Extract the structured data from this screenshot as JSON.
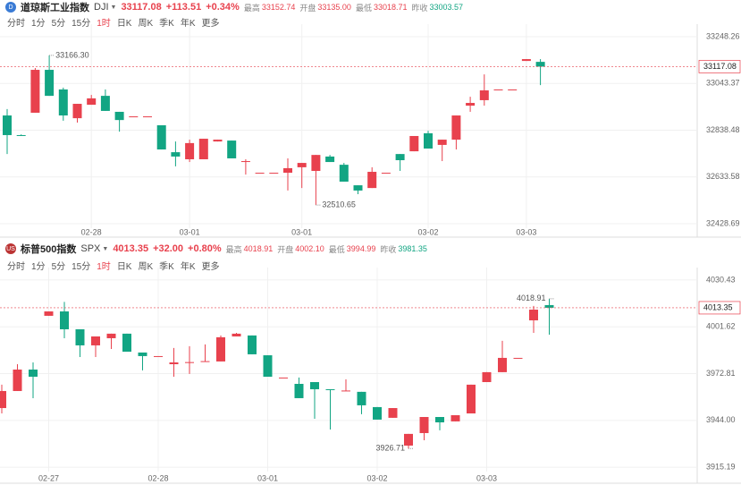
{
  "tabs": [
    "分时",
    "1分",
    "5分",
    "15分",
    "1时",
    "日K",
    "周K",
    "季K",
    "年K",
    "更多"
  ],
  "active_tab": "1时",
  "chart_data": [
    {
      "type": "candlestick",
      "title": "道琼斯工业指数",
      "symbol": "DJI",
      "icon": "D",
      "header": {
        "change": "+113.51",
        "change_pct": "+0.34%",
        "high_label": "最高",
        "high": "33152.74",
        "open_label": "开盘",
        "open": "33135.00",
        "low_label": "最低",
        "low": "33018.71",
        "prev_label": "昨收",
        "prev": "33003.57"
      },
      "categories": [
        null,
        null,
        null,
        null,
        null,
        null,
        "02-28",
        null,
        null,
        null,
        null,
        null,
        null,
        "03-01",
        null,
        null,
        null,
        null,
        null,
        null,
        null,
        "03-01",
        null,
        null,
        null,
        null,
        null,
        null,
        null,
        null,
        "03-02",
        null,
        null,
        null,
        null,
        null,
        null,
        "03-03",
        null
      ],
      "open": [
        32903,
        32817,
        32915,
        33103,
        33017,
        32891,
        32950,
        32989,
        32919,
        32899,
        32899,
        32860,
        32742,
        32711,
        32711,
        32789,
        32793,
        32703,
        32652,
        32652,
        32652,
        32676,
        32660,
        32723,
        32687,
        32597,
        32585,
        32652,
        32734,
        32746,
        32825,
        32774,
        32797,
        32946,
        32970,
        33017,
        33017,
        33142,
        33138
      ],
      "high": [
        32931,
        32820,
        33111,
        33166.3,
        33025,
        32954,
        32993,
        33017,
        32919,
        32899,
        32899,
        32860,
        32789,
        32797,
        32801,
        32797,
        32793,
        32711,
        32652,
        32652,
        32715,
        32695,
        32730,
        32730,
        32695,
        32597,
        32676,
        32652,
        32734,
        32813,
        32836,
        32797,
        32903,
        32985,
        33083,
        33017,
        33017,
        33150,
        33150
      ],
      "low": [
        32734,
        32814,
        32915,
        32989,
        32880,
        32872,
        32950,
        32923,
        32832,
        32899,
        32899,
        32754,
        32680,
        32699,
        32711,
        32789,
        32715,
        32644,
        32652,
        32652,
        32574,
        32585,
        32510.65,
        32699,
        32613,
        32558,
        32585,
        32652,
        32660,
        32746,
        32758,
        32703,
        32754,
        32919,
        32946,
        33017,
        33017,
        33142,
        33036
      ],
      "close": [
        32817,
        32816,
        33103,
        32989,
        32903,
        32954,
        32978,
        32923,
        32883,
        32899,
        32899,
        32754,
        32723,
        32782,
        32801,
        32797,
        32715,
        32703,
        32652,
        32652,
        32672,
        32695,
        32730,
        32699,
        32613,
        32574,
        32656,
        32652,
        32707,
        32813,
        32758,
        32797,
        32903,
        32958,
        33013,
        33017,
        33017,
        33150,
        33117.08
      ],
      "max_label": "33166.30",
      "min_label": "32510.65",
      "ylim": [
        32409,
        33271.8
      ],
      "yticks": [
        33248.26,
        33043.37,
        32838.48,
        32633.58,
        32428.69
      ],
      "up_color": "#e8414d",
      "down_color": "#12a583",
      "grid": true
    },
    {
      "type": "candlestick",
      "title": "标普500指数",
      "symbol": "SPX",
      "icon": "US",
      "header": {
        "change": "+32.00",
        "change_pct": "+0.80%",
        "high_label": "最高",
        "high": "4018.91",
        "open_label": "开盘",
        "open": "4002.10",
        "low_label": "最低",
        "low": "3994.99",
        "prev_label": "昨收",
        "prev": "3981.35"
      },
      "categories": [
        null,
        null,
        null,
        "02-27",
        null,
        null,
        null,
        null,
        null,
        null,
        "02-28",
        null,
        null,
        null,
        null,
        null,
        null,
        "03-01",
        null,
        null,
        null,
        null,
        null,
        null,
        "03-02",
        null,
        null,
        null,
        null,
        null,
        null,
        "03-03",
        null,
        null,
        null,
        null
      ],
      "open": [
        3951.6,
        3962.1,
        3975.3,
        4008.4,
        4011.1,
        4000.1,
        3990.2,
        3994.6,
        3997.4,
        3985.8,
        3983.6,
        3978.6,
        3979.7,
        3980.3,
        3980.3,
        3995.7,
        3996.3,
        3984.1,
        3970.4,
        3966.5,
        3967.6,
        3963.2,
        3962.1,
        3961.6,
        3952.2,
        3945.6,
        3928.5,
        3936.2,
        3946.1,
        3943.4,
        3948.3,
        3967.6,
        3973.7,
        3982.5,
        4005.6,
        4015.0
      ],
      "high": [
        3966.0,
        3978.6,
        3979.7,
        4011.1,
        4017.0,
        4000.1,
        3995.7,
        3997.4,
        3997.4,
        3985.8,
        3983.6,
        3988.6,
        3989.7,
        3990.8,
        3996.3,
        3997.9,
        3996.3,
        3984.1,
        3970.4,
        3970.4,
        3967.6,
        3963.2,
        3969.3,
        3961.6,
        3952.2,
        3951.6,
        3935.7,
        3946.1,
        3946.1,
        3947.2,
        3966.0,
        3973.7,
        3993.0,
        3982.5,
        4014.5,
        4018.91
      ],
      "low": [
        3948.3,
        3962.1,
        3957.7,
        4008.4,
        3994.6,
        3983.0,
        3983.0,
        3988.0,
        3986.3,
        3974.8,
        3983.6,
        3970.9,
        3972.6,
        3980.3,
        3980.3,
        3995.7,
        3984.7,
        3970.9,
        3970.4,
        3957.7,
        3945.0,
        3938.4,
        3962.1,
        3947.8,
        3944.5,
        3945.6,
        3926.71,
        3931.8,
        3937.9,
        3943.4,
        3948.3,
        3967.6,
        3973.7,
        3982.5,
        3997.9,
        3996.8
      ],
      "close": [
        3962.1,
        3975.3,
        3970.9,
        4011.1,
        4000.1,
        3990.2,
        3995.7,
        3997.4,
        3986.3,
        3983.6,
        3983.6,
        3979.7,
        3979.9,
        3980.5,
        3995.2,
        3997.4,
        3984.7,
        3970.9,
        3970.4,
        3957.7,
        3963.2,
        3963.0,
        3962.4,
        3953.3,
        3944.5,
        3951.6,
        3935.7,
        3946.1,
        3942.8,
        3947.2,
        3966.0,
        3973.7,
        3982.5,
        3982.5,
        4012.2,
        4013.35
      ],
      "max_label": "4018.91",
      "min_label": "3926.71",
      "ylim": [
        3912.5,
        4033.7
      ],
      "yticks": [
        4030.43,
        4001.62,
        3972.81,
        {
          "value": 3944,
          "label": "3944.00"
        },
        3915.19
      ],
      "up_color": "#e8414d",
      "down_color": "#12a583",
      "grid": true
    }
  ]
}
